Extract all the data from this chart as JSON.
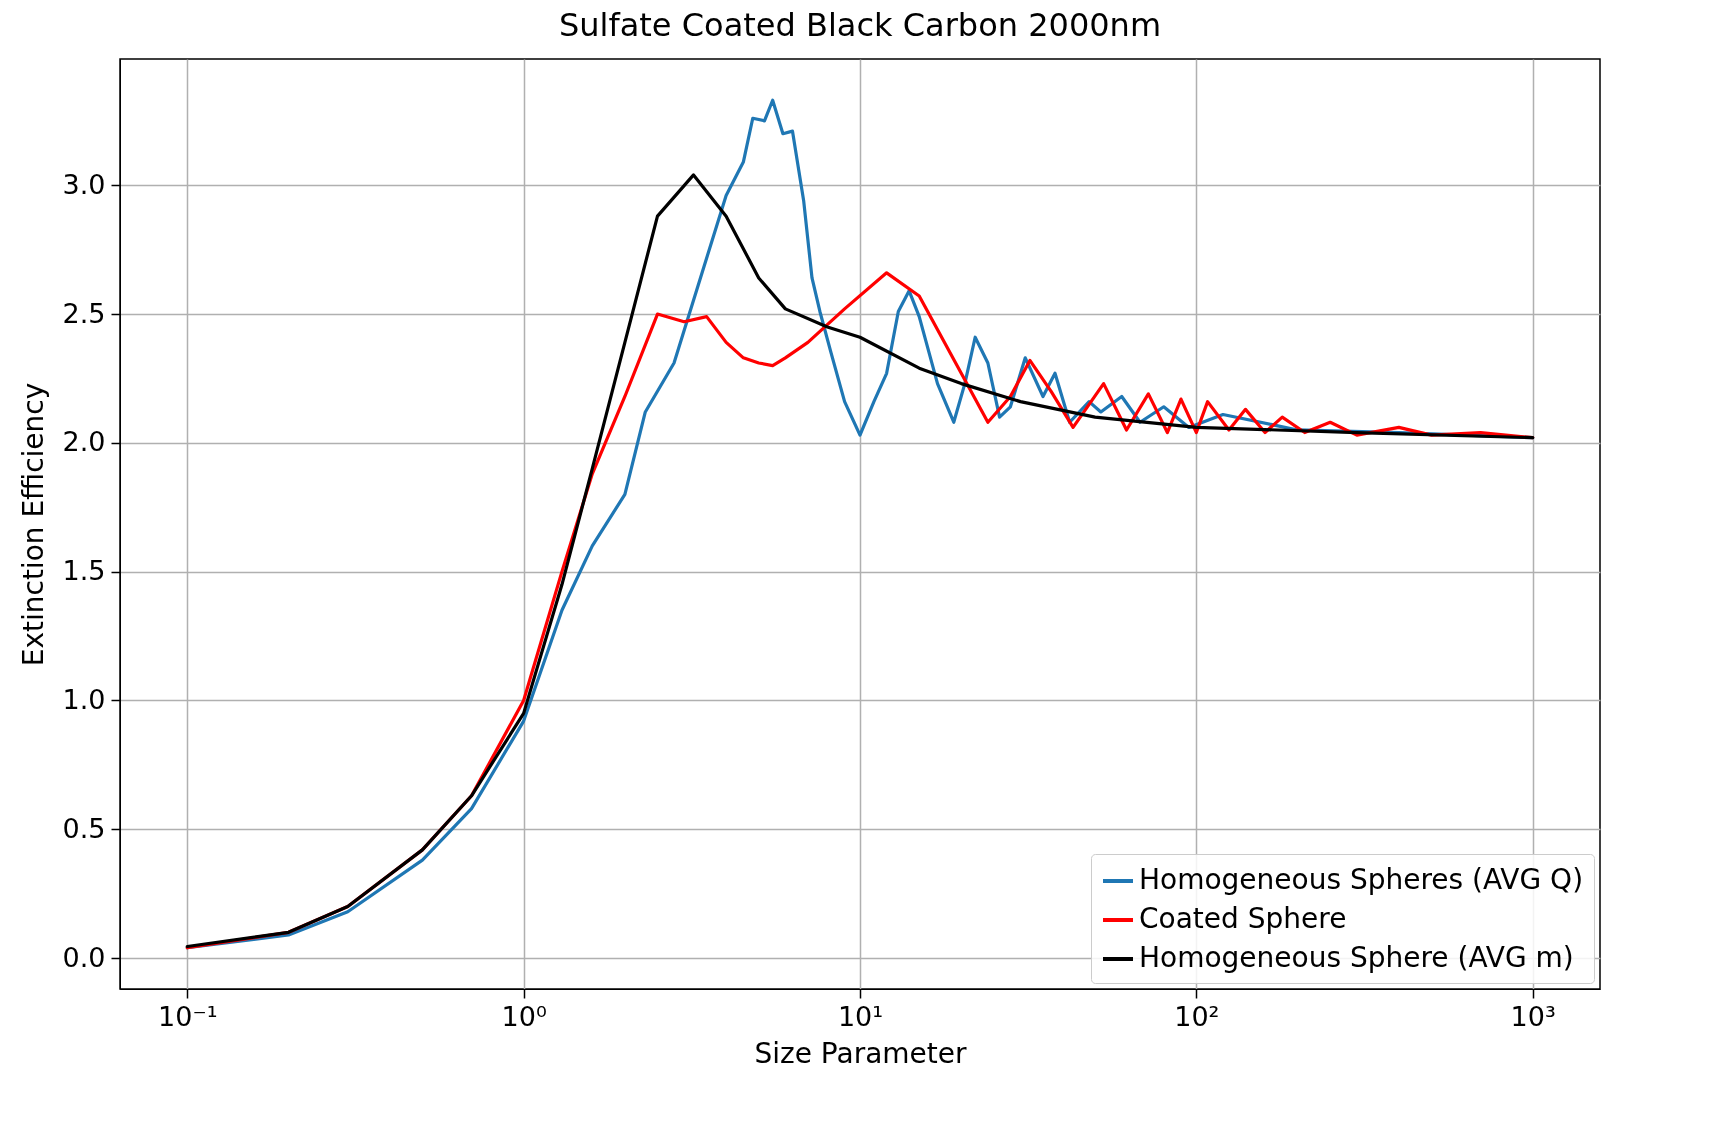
{
  "chart_data": {
    "type": "line",
    "title": "Sulfate Coated Black Carbon 2000nm",
    "xlabel": "Size Parameter",
    "ylabel": "Extinction Efficiency",
    "log": "x",
    "grid": true,
    "legend": "bottom right",
    "xlim": [
      0.0631,
      1585
    ],
    "ylim": [
      -0.12,
      3.49
    ],
    "xticks": [
      {
        "value": 0.1,
        "label": "10⁻¹"
      },
      {
        "value": 1,
        "label": "10⁰"
      },
      {
        "value": 10,
        "label": "10¹"
      },
      {
        "value": 100,
        "label": "10²"
      },
      {
        "value": 1000,
        "label": "10³"
      }
    ],
    "yticks": [
      {
        "value": 0,
        "label": "0.0"
      },
      0.5,
      {
        "value": 1,
        "label": "1.0"
      },
      1.5,
      {
        "value": 2,
        "label": "2.0"
      },
      2.5,
      {
        "value": 3,
        "label": "3.0"
      }
    ],
    "series": [
      {
        "name": "Homogeneous Spheres (AVG Q)",
        "color": "#1f77b4",
        "x": [
          0.1,
          0.2,
          0.3,
          0.5,
          0.7,
          1.0,
          1.3,
          1.6,
          2.0,
          2.3,
          2.8,
          3.3,
          4.0,
          4.5,
          4.8,
          5.2,
          5.5,
          5.9,
          6.3,
          6.8,
          7.2,
          7.6,
          8.2,
          9.0,
          10,
          11,
          12,
          13,
          14,
          15,
          17,
          19,
          20.5,
          22,
          24,
          26,
          28,
          31,
          35,
          38,
          42,
          48,
          52,
          60,
          68,
          80,
          95,
          120,
          200,
          400,
          1000
        ],
        "values": [
          0.04,
          0.09,
          0.18,
          0.38,
          0.58,
          0.92,
          1.35,
          1.6,
          1.8,
          2.12,
          2.31,
          2.61,
          2.96,
          3.09,
          3.26,
          3.25,
          3.33,
          3.2,
          3.21,
          2.94,
          2.64,
          2.51,
          2.35,
          2.16,
          2.03,
          2.16,
          2.27,
          2.51,
          2.59,
          2.49,
          2.23,
          2.08,
          2.23,
          2.41,
          2.31,
          2.1,
          2.14,
          2.33,
          2.18,
          2.27,
          2.08,
          2.16,
          2.12,
          2.18,
          2.08,
          2.14,
          2.06,
          2.11,
          2.05,
          2.04,
          2.02
        ]
      },
      {
        "name": "Coated Sphere",
        "color": "#ff0000",
        "x": [
          0.1,
          0.2,
          0.3,
          0.5,
          0.7,
          1.0,
          1.3,
          1.6,
          2.0,
          2.5,
          3.0,
          3.5,
          4.0,
          4.5,
          5,
          5.5,
          6,
          7,
          9,
          12,
          15,
          20,
          24,
          28,
          32,
          37,
          43,
          53,
          62,
          72,
          82,
          90,
          100,
          108,
          125,
          140,
          160,
          180,
          210,
          250,
          300,
          400,
          500,
          700,
          1000
        ],
        "values": [
          0.04,
          0.1,
          0.2,
          0.42,
          0.63,
          1.0,
          1.5,
          1.88,
          2.18,
          2.5,
          2.47,
          2.49,
          2.39,
          2.33,
          2.31,
          2.3,
          2.33,
          2.39,
          2.52,
          2.66,
          2.57,
          2.27,
          2.08,
          2.18,
          2.32,
          2.2,
          2.06,
          2.23,
          2.05,
          2.19,
          2.04,
          2.17,
          2.04,
          2.16,
          2.05,
          2.13,
          2.04,
          2.1,
          2.04,
          2.08,
          2.03,
          2.06,
          2.03,
          2.04,
          2.02
        ]
      },
      {
        "name": "Homogeneous Sphere (AVG m)",
        "color": "#000000",
        "x": [
          0.1,
          0.2,
          0.3,
          0.5,
          0.7,
          1.0,
          1.3,
          1.6,
          2.0,
          2.5,
          3.2,
          4.0,
          5,
          6,
          8,
          10,
          15,
          20,
          30,
          50,
          100,
          300,
          1000
        ],
        "values": [
          0.045,
          0.1,
          0.2,
          0.42,
          0.63,
          0.95,
          1.45,
          1.9,
          2.39,
          2.88,
          3.04,
          2.88,
          2.64,
          2.52,
          2.45,
          2.41,
          2.29,
          2.23,
          2.16,
          2.1,
          2.06,
          2.04,
          2.02
        ]
      }
    ]
  }
}
